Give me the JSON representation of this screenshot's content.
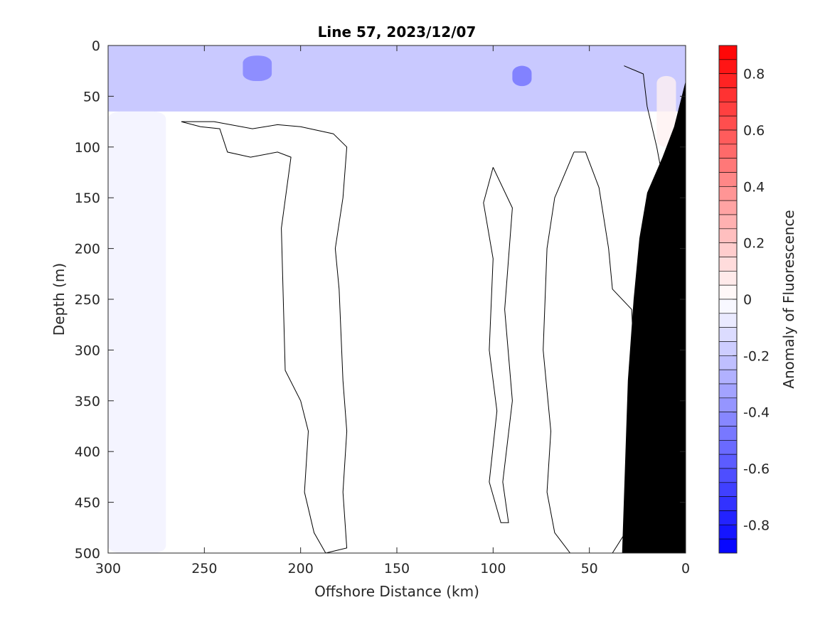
{
  "chart_data": {
    "type": "heatmap",
    "title": "Line 57, 2023/12/07",
    "xlabel": "Offshore Distance (km)",
    "ylabel": "Depth (m)",
    "x_ticks": [
      "300",
      "250",
      "200",
      "150",
      "100",
      "50",
      "0"
    ],
    "y_ticks": [
      "0",
      "50",
      "100",
      "150",
      "200",
      "250",
      "300",
      "350",
      "400",
      "450",
      "500"
    ],
    "xlim": [
      300,
      0
    ],
    "ylim": [
      0,
      500
    ],
    "x_reversed": true,
    "y_reversed": true,
    "colorbar": {
      "label": "Anomaly of Fluorescence",
      "ticks": [
        "0.8",
        "0.6",
        "0.4",
        "0.2",
        "0",
        "-0.2",
        "-0.4",
        "-0.6",
        "-0.8"
      ],
      "tick_values": [
        0.8,
        0.6,
        0.4,
        0.2,
        0,
        -0.2,
        -0.4,
        -0.6,
        -0.8
      ],
      "range": [
        -0.9,
        0.9
      ],
      "levels": 36,
      "colormap": "blue-white-red",
      "low_color": "#0000ff",
      "mid_color": "#ffffff",
      "high_color": "#ff0000"
    },
    "regions": [
      {
        "description": "negative anomaly surface layer",
        "x_range": [
          300,
          0
        ],
        "depth_range": [
          0,
          65
        ],
        "value": -0.35
      },
      {
        "description": "strongest negative anomaly",
        "x_range": [
          230,
          215
        ],
        "depth_range": [
          10,
          35
        ],
        "value": -0.45
      },
      {
        "description": "strongest negative anomaly",
        "x_range": [
          90,
          80
        ],
        "depth_range": [
          20,
          40
        ],
        "value": -0.5
      },
      {
        "description": "slight negative anomaly near offshore edge",
        "x_range": [
          300,
          270
        ],
        "depth_range": [
          65,
          500
        ],
        "value": -0.05
      },
      {
        "description": "slight positive anomaly near shelf",
        "x_range": [
          15,
          5
        ],
        "depth_range": [
          30,
          100
        ],
        "value": 0.05
      }
    ],
    "zero_contours": 6,
    "bathymetry": {
      "color": "#000000",
      "points": [
        [
          0,
          35
        ],
        [
          6,
          80
        ],
        [
          12,
          110
        ],
        [
          20,
          145
        ],
        [
          24,
          190
        ],
        [
          27,
          250
        ],
        [
          30,
          330
        ],
        [
          33,
          500
        ]
      ]
    }
  }
}
